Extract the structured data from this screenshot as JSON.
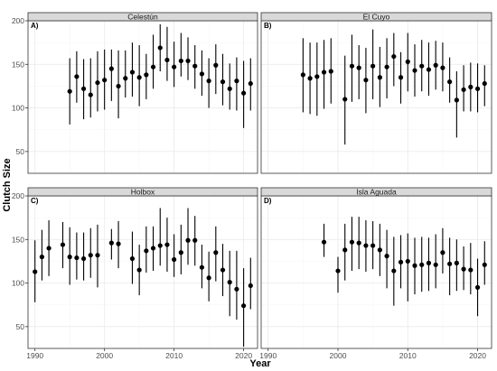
{
  "chart_data": {
    "type": "scatter",
    "style": "point-range faceted plot",
    "xlabel": "Year",
    "ylabel": "Clutch Size",
    "xlim": [
      1989,
      2022
    ],
    "ylim": [
      25,
      200
    ],
    "x_ticks": [
      1990,
      2000,
      2010,
      2020
    ],
    "y_ticks": [
      50,
      100,
      150,
      200
    ],
    "grid": true,
    "panels": [
      {
        "tag": "A)",
        "title": "Celestún",
        "points": [
          {
            "x": 1995,
            "y": 119,
            "low": 81,
            "high": 157
          },
          {
            "x": 1996,
            "y": 136,
            "low": 106,
            "high": 165
          },
          {
            "x": 1997,
            "y": 122,
            "low": 87,
            "high": 156
          },
          {
            "x": 1998,
            "y": 115,
            "low": 89,
            "high": 157
          },
          {
            "x": 1999,
            "y": 129,
            "low": 96,
            "high": 165
          },
          {
            "x": 2000,
            "y": 132,
            "low": 98,
            "high": 167
          },
          {
            "x": 2001,
            "y": 145,
            "low": 108,
            "high": 167
          },
          {
            "x": 2002,
            "y": 125,
            "low": 88,
            "high": 166
          },
          {
            "x": 2003,
            "y": 134,
            "low": 112,
            "high": 166
          },
          {
            "x": 2004,
            "y": 141,
            "low": 113,
            "high": 175
          },
          {
            "x": 2005,
            "y": 135,
            "low": 102,
            "high": 172
          },
          {
            "x": 2006,
            "y": 138,
            "low": 110,
            "high": 162
          },
          {
            "x": 2007,
            "y": 147,
            "low": 122,
            "high": 184
          },
          {
            "x": 2008,
            "y": 169,
            "low": 142,
            "high": 196
          },
          {
            "x": 2009,
            "y": 155,
            "low": 131,
            "high": 193
          },
          {
            "x": 2010,
            "y": 147,
            "low": 124,
            "high": 176
          },
          {
            "x": 2011,
            "y": 154,
            "low": 136,
            "high": 186
          },
          {
            "x": 2012,
            "y": 154,
            "low": 132,
            "high": 181
          },
          {
            "x": 2013,
            "y": 148,
            "low": 122,
            "high": 172
          },
          {
            "x": 2014,
            "y": 139,
            "low": 114,
            "high": 166
          },
          {
            "x": 2015,
            "y": 131,
            "low": 100,
            "high": 157
          },
          {
            "x": 2016,
            "y": 149,
            "low": 116,
            "high": 173
          },
          {
            "x": 2017,
            "y": 130,
            "low": 103,
            "high": 162
          },
          {
            "x": 2018,
            "y": 122,
            "low": 98,
            "high": 151
          },
          {
            "x": 2019,
            "y": 131,
            "low": 97,
            "high": 158
          },
          {
            "x": 2020,
            "y": 117,
            "low": 77,
            "high": 154
          },
          {
            "x": 2021,
            "y": 128,
            "low": 97,
            "high": 157
          }
        ]
      },
      {
        "tag": "B)",
        "title": "El Cuyo",
        "points": [
          {
            "x": 1995,
            "y": 138,
            "low": 95,
            "high": 180
          },
          {
            "x": 1996,
            "y": 134,
            "low": 93,
            "high": 175
          },
          {
            "x": 1997,
            "y": 136,
            "low": 91,
            "high": 175
          },
          {
            "x": 1998,
            "y": 141,
            "low": 99,
            "high": 178
          },
          {
            "x": 1999,
            "y": 142,
            "low": 105,
            "high": 180
          },
          {
            "x": 2001,
            "y": 110,
            "low": 58,
            "high": 160
          },
          {
            "x": 2002,
            "y": 148,
            "low": 107,
            "high": 184
          },
          {
            "x": 2003,
            "y": 146,
            "low": 110,
            "high": 172
          },
          {
            "x": 2004,
            "y": 132,
            "low": 94,
            "high": 169
          },
          {
            "x": 2005,
            "y": 148,
            "low": 110,
            "high": 190
          },
          {
            "x": 2006,
            "y": 135,
            "low": 101,
            "high": 170
          },
          {
            "x": 2007,
            "y": 147,
            "low": 111,
            "high": 180
          },
          {
            "x": 2008,
            "y": 159,
            "low": 125,
            "high": 186
          },
          {
            "x": 2009,
            "y": 135,
            "low": 105,
            "high": 164
          },
          {
            "x": 2010,
            "y": 153,
            "low": 119,
            "high": 186
          },
          {
            "x": 2011,
            "y": 143,
            "low": 113,
            "high": 173
          },
          {
            "x": 2012,
            "y": 148,
            "low": 119,
            "high": 178
          },
          {
            "x": 2013,
            "y": 144,
            "low": 114,
            "high": 175
          },
          {
            "x": 2014,
            "y": 149,
            "low": 121,
            "high": 177
          },
          {
            "x": 2015,
            "y": 146,
            "low": 119,
            "high": 175
          },
          {
            "x": 2016,
            "y": 130,
            "low": 106,
            "high": 158
          },
          {
            "x": 2017,
            "y": 109,
            "low": 66,
            "high": 142
          },
          {
            "x": 2018,
            "y": 121,
            "low": 96,
            "high": 149
          },
          {
            "x": 2019,
            "y": 124,
            "low": 96,
            "high": 152
          },
          {
            "x": 2020,
            "y": 122,
            "low": 95,
            "high": 151
          },
          {
            "x": 2021,
            "y": 128,
            "low": 102,
            "high": 149
          }
        ]
      },
      {
        "tag": "C)",
        "title": "Holbox",
        "points": [
          {
            "x": 1990,
            "y": 113,
            "low": 78,
            "high": 149
          },
          {
            "x": 1991,
            "y": 130,
            "low": 103,
            "high": 161
          },
          {
            "x": 1992,
            "y": 140,
            "low": 108,
            "high": 172
          },
          {
            "x": 1994,
            "y": 144,
            "low": 117,
            "high": 170
          },
          {
            "x": 1995,
            "y": 130,
            "low": 98,
            "high": 164
          },
          {
            "x": 1996,
            "y": 129,
            "low": 104,
            "high": 158
          },
          {
            "x": 1997,
            "y": 128,
            "low": 103,
            "high": 158
          },
          {
            "x": 1998,
            "y": 132,
            "low": 106,
            "high": 163
          },
          {
            "x": 1999,
            "y": 132,
            "low": 95,
            "high": 167
          },
          {
            "x": 2001,
            "y": 146,
            "low": 127,
            "high": 162
          },
          {
            "x": 2002,
            "y": 145,
            "low": 117,
            "high": 171
          },
          {
            "x": 2004,
            "y": 128,
            "low": 99,
            "high": 159
          },
          {
            "x": 2005,
            "y": 115,
            "low": 86,
            "high": 144
          },
          {
            "x": 2006,
            "y": 137,
            "low": 112,
            "high": 165
          },
          {
            "x": 2007,
            "y": 140,
            "low": 114,
            "high": 165
          },
          {
            "x": 2008,
            "y": 143,
            "low": 120,
            "high": 186
          },
          {
            "x": 2009,
            "y": 144,
            "low": 113,
            "high": 175
          },
          {
            "x": 2010,
            "y": 127,
            "low": 107,
            "high": 156
          },
          {
            "x": 2011,
            "y": 135,
            "low": 110,
            "high": 167
          },
          {
            "x": 2012,
            "y": 149,
            "low": 121,
            "high": 186
          },
          {
            "x": 2013,
            "y": 149,
            "low": 120,
            "high": 177
          },
          {
            "x": 2014,
            "y": 118,
            "low": 94,
            "high": 144
          },
          {
            "x": 2015,
            "y": 106,
            "low": 79,
            "high": 136
          },
          {
            "x": 2016,
            "y": 135,
            "low": 102,
            "high": 165
          },
          {
            "x": 2017,
            "y": 115,
            "low": 85,
            "high": 145
          },
          {
            "x": 2018,
            "y": 101,
            "low": 62,
            "high": 137
          },
          {
            "x": 2019,
            "y": 93,
            "low": 58,
            "high": 137
          },
          {
            "x": 2020,
            "y": 74,
            "low": 27,
            "high": 117
          },
          {
            "x": 2021,
            "y": 97,
            "low": 70,
            "high": 129
          }
        ]
      },
      {
        "tag": "D)",
        "title": "Isla Aguada",
        "points": [
          {
            "x": 1998,
            "y": 147,
            "low": 130,
            "high": 168
          },
          {
            "x": 2000,
            "y": 114,
            "low": 89,
            "high": 130
          },
          {
            "x": 2001,
            "y": 138,
            "low": 103,
            "high": 168
          },
          {
            "x": 2002,
            "y": 147,
            "low": 114,
            "high": 176
          },
          {
            "x": 2003,
            "y": 146,
            "low": 116,
            "high": 176
          },
          {
            "x": 2004,
            "y": 143,
            "low": 113,
            "high": 172
          },
          {
            "x": 2005,
            "y": 143,
            "low": 116,
            "high": 171
          },
          {
            "x": 2006,
            "y": 138,
            "low": 108,
            "high": 168
          },
          {
            "x": 2007,
            "y": 131,
            "low": 94,
            "high": 161
          },
          {
            "x": 2008,
            "y": 114,
            "low": 74,
            "high": 153
          },
          {
            "x": 2009,
            "y": 124,
            "low": 94,
            "high": 155
          },
          {
            "x": 2010,
            "y": 125,
            "low": 79,
            "high": 157
          },
          {
            "x": 2011,
            "y": 120,
            "low": 87,
            "high": 152
          },
          {
            "x": 2012,
            "y": 121,
            "low": 90,
            "high": 153
          },
          {
            "x": 2013,
            "y": 123,
            "low": 91,
            "high": 152
          },
          {
            "x": 2014,
            "y": 121,
            "low": 94,
            "high": 156
          },
          {
            "x": 2015,
            "y": 135,
            "low": 111,
            "high": 163
          },
          {
            "x": 2016,
            "y": 122,
            "low": 86,
            "high": 152
          },
          {
            "x": 2017,
            "y": 123,
            "low": 91,
            "high": 150
          },
          {
            "x": 2018,
            "y": 116,
            "low": 92,
            "high": 142
          },
          {
            "x": 2019,
            "y": 115,
            "low": 87,
            "high": 146
          },
          {
            "x": 2020,
            "y": 95,
            "low": 62,
            "high": 128
          },
          {
            "x": 2021,
            "y": 121,
            "low": 98,
            "high": 148
          }
        ]
      }
    ]
  },
  "colors": {
    "panel_background": "#ffffff",
    "panel_border": "#333333",
    "strip_fill": "#d9d9d9",
    "grid_major": "#ebebeb",
    "grid_minor": "#f5f5f5",
    "point": "#000000",
    "errorbar": "#000000"
  }
}
